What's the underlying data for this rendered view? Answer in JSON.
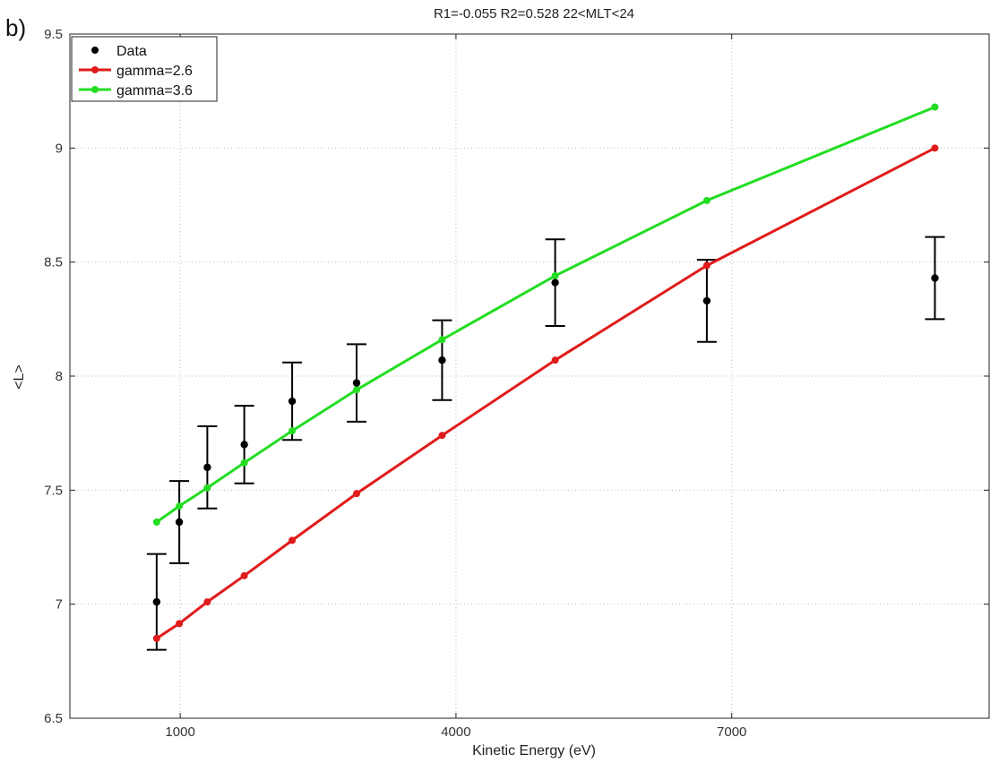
{
  "panel_label": "b)",
  "chart_data": {
    "type": "line",
    "title": "R1=-0.055  R2=0.528 22<MLT<24",
    "xlabel": "Kinetic Energy (eV)",
    "ylabel": "<L>",
    "xlim": [
      -200,
      9800
    ],
    "ylim": [
      6.5,
      9.5
    ],
    "xticks": [
      1000,
      4000,
      7000
    ],
    "yticks": [
      6.5,
      7,
      7.5,
      8,
      8.5,
      9,
      9.5
    ],
    "grid": true,
    "legend_position": "top-left",
    "series": [
      {
        "name": "Data",
        "style": "points-errorbars",
        "color": "#000000",
        "x": [
          744,
          990,
          1295,
          1697,
          2218,
          2919,
          3849,
          5079,
          6729,
          9210
        ],
        "y": [
          7.01,
          7.36,
          7.6,
          7.7,
          7.89,
          7.97,
          8.07,
          8.41,
          8.33,
          8.43
        ],
        "err": [
          0.21,
          0.18,
          0.18,
          0.17,
          0.17,
          0.17,
          0.175,
          0.19,
          0.18,
          0.18
        ]
      },
      {
        "name": "gamma=2.6",
        "style": "line-markers",
        "color": "#e01b1b",
        "x": [
          744,
          990,
          1295,
          1697,
          2218,
          2919,
          3849,
          5079,
          6729,
          9210
        ],
        "y": [
          6.85,
          6.915,
          7.01,
          7.125,
          7.28,
          7.485,
          7.74,
          8.07,
          8.485,
          9.0
        ]
      },
      {
        "name": "gamma=3.6",
        "style": "line-markers",
        "color": "#22dd22",
        "x": [
          744,
          990,
          1295,
          1697,
          2218,
          2919,
          3849,
          5079,
          6729,
          9210
        ],
        "y": [
          7.36,
          7.43,
          7.51,
          7.62,
          7.76,
          7.94,
          8.16,
          8.44,
          8.77,
          9.18
        ]
      }
    ]
  }
}
